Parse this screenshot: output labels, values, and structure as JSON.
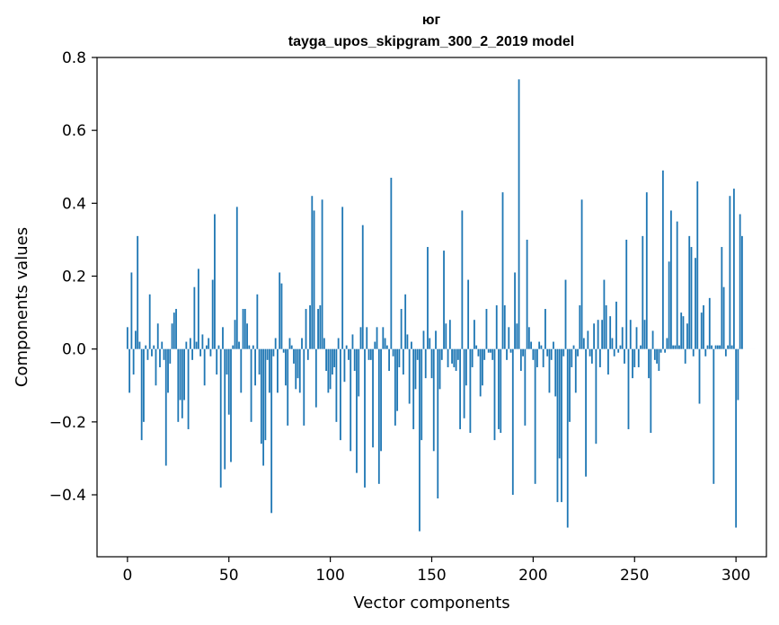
{
  "chart_data": {
    "type": "bar",
    "title": "юг",
    "subtitle": "tayga_upos_skipgram_300_2_2019 model",
    "xlabel": "Vector components",
    "ylabel": "Components values",
    "xlim": [
      -15,
      315
    ],
    "ylim": [
      -0.57,
      0.8
    ],
    "xticks": [
      0,
      50,
      100,
      150,
      200,
      250,
      300
    ],
    "yticks": [
      -0.4,
      -0.2,
      0.0,
      0.2,
      0.4,
      0.6,
      0.8
    ],
    "xtick_labels": [
      "0",
      "50",
      "100",
      "150",
      "200",
      "250",
      "300"
    ],
    "ytick_labels": [
      "−0.4",
      "−0.2",
      "0.0",
      "0.2",
      "0.4",
      "0.6",
      "0.8"
    ],
    "bar_color": "#1f77b4",
    "grid": false,
    "values": [
      0.06,
      -0.12,
      0.21,
      -0.07,
      0.05,
      0.31,
      0.02,
      -0.25,
      -0.2,
      0.01,
      -0.03,
      0.15,
      -0.02,
      0.01,
      -0.1,
      0.07,
      -0.05,
      0.02,
      -0.03,
      -0.32,
      -0.12,
      -0.04,
      0.07,
      0.1,
      0.11,
      -0.2,
      -0.14,
      -0.19,
      -0.14,
      0.02,
      -0.22,
      0.03,
      -0.03,
      0.17,
      0.02,
      0.22,
      -0.02,
      0.04,
      -0.1,
      0.01,
      0.03,
      -0.02,
      0.19,
      0.37,
      -0.07,
      0.01,
      -0.38,
      0.06,
      -0.33,
      -0.07,
      -0.18,
      -0.31,
      0.01,
      0.08,
      0.39,
      0.02,
      -0.12,
      0.11,
      0.11,
      0.07,
      0.01,
      -0.2,
      0.01,
      -0.1,
      0.15,
      -0.07,
      -0.26,
      -0.32,
      -0.25,
      -0.03,
      -0.12,
      -0.45,
      -0.02,
      0.03,
      -0.12,
      0.21,
      0.18,
      -0.01,
      -0.1,
      -0.21,
      0.03,
      0.01,
      -0.04,
      -0.11,
      -0.08,
      -0.12,
      0.03,
      -0.21,
      0.11,
      -0.03,
      0.12,
      0.42,
      0.38,
      -0.16,
      0.11,
      0.12,
      0.41,
      0.03,
      -0.06,
      -0.12,
      -0.11,
      -0.07,
      -0.05,
      -0.2,
      0.03,
      -0.25,
      0.39,
      -0.09,
      0.01,
      -0.03,
      -0.28,
      0.04,
      -0.06,
      -0.34,
      -0.13,
      0.06,
      0.34,
      -0.38,
      0.06,
      -0.03,
      -0.03,
      -0.27,
      0.02,
      0.06,
      -0.37,
      -0.28,
      0.06,
      0.03,
      0.01,
      -0.06,
      0.47,
      -0.02,
      -0.21,
      -0.17,
      -0.05,
      0.11,
      -0.07,
      0.15,
      0.04,
      -0.15,
      0.02,
      -0.22,
      -0.11,
      -0.03,
      -0.5,
      -0.25,
      0.05,
      -0.08,
      0.28,
      0.03,
      -0.08,
      -0.28,
      0.05,
      -0.41,
      -0.11,
      -0.03,
      0.27,
      0.07,
      -0.05,
      0.08,
      -0.04,
      -0.05,
      -0.06,
      -0.03,
      -0.22,
      0.38,
      -0.19,
      -0.1,
      0.19,
      -0.23,
      -0.05,
      0.08,
      0.01,
      -0.02,
      -0.13,
      -0.1,
      -0.03,
      0.11,
      -0.01,
      -0.01,
      -0.03,
      -0.25,
      0.12,
      -0.22,
      -0.23,
      0.43,
      0.12,
      -0.03,
      0.06,
      -0.01,
      -0.4,
      0.21,
      0.07,
      0.74,
      -0.06,
      -0.02,
      -0.21,
      0.3,
      0.06,
      0.02,
      -0.03,
      -0.37,
      -0.05,
      0.02,
      0.01,
      -0.05,
      0.11,
      -0.02,
      -0.12,
      -0.03,
      0.02,
      -0.13,
      -0.42,
      -0.3,
      -0.42,
      -0.02,
      0.19,
      -0.49,
      -0.2,
      -0.05,
      0.01,
      -0.12,
      -0.02,
      0.12,
      0.41,
      0.03,
      -0.35,
      0.05,
      -0.02,
      -0.04,
      0.07,
      -0.26,
      0.08,
      -0.05,
      0.08,
      0.19,
      0.12,
      -0.07,
      0.09,
      0.03,
      -0.02,
      0.13,
      -0.01,
      0.01,
      0.06,
      -0.04,
      0.3,
      -0.22,
      0.08,
      -0.08,
      -0.05,
      0.06,
      -0.05,
      0.01,
      0.31,
      0.08,
      0.43,
      -0.08,
      -0.23,
      0.05,
      -0.03,
      -0.04,
      -0.06,
      -0.01,
      0.49,
      -0.01,
      0.03,
      0.24,
      0.38,
      0.01,
      0.01,
      0.35,
      0.01,
      0.1,
      0.09,
      -0.04,
      0.07,
      0.31,
      0.28,
      -0.02,
      0.25,
      0.46,
      -0.15,
      0.1,
      0.12,
      -0.02,
      0.01,
      0.14,
      0.01,
      -0.37,
      0.01,
      0.01,
      0.01,
      0.28,
      0.17,
      -0.02,
      0.01,
      0.42,
      0.01,
      0.44,
      -0.49,
      -0.14,
      0.37,
      0.31,
      0.0,
      0.0,
      0.0,
      0.0,
      0.0,
      0.0
    ]
  }
}
